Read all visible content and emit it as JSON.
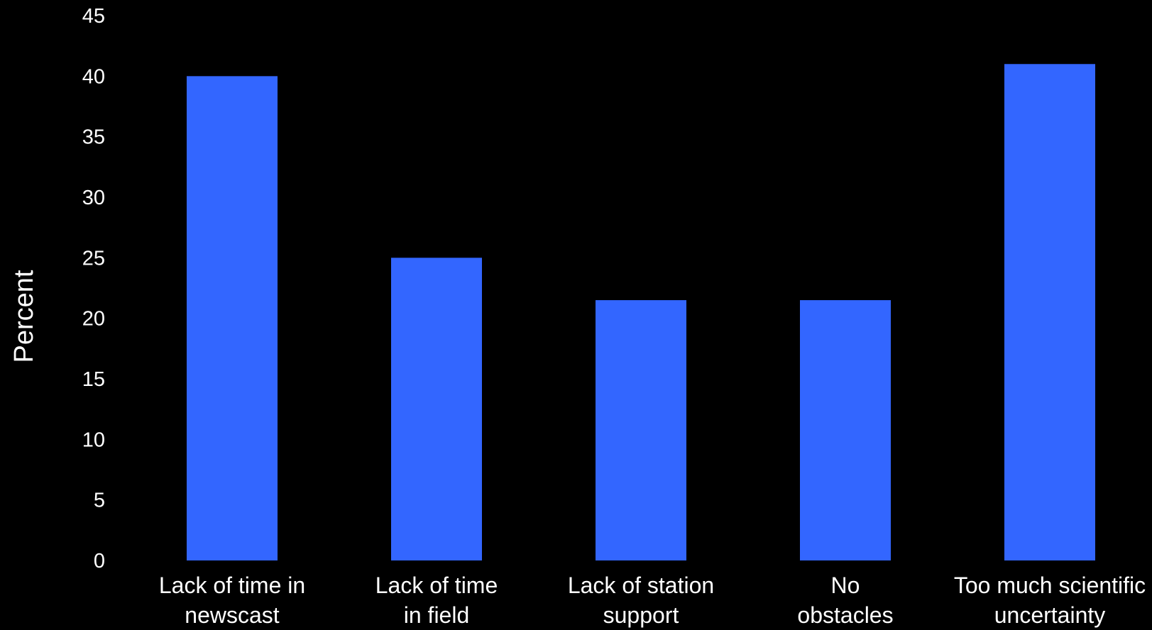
{
  "chart_data": {
    "type": "bar",
    "title": "",
    "xlabel": "",
    "ylabel": "Percent",
    "ylim": [
      0,
      45
    ],
    "yticks": [
      0,
      5,
      10,
      15,
      20,
      25,
      30,
      35,
      40,
      45
    ],
    "grid": false,
    "legend": "none",
    "categories": [
      [
        "Lack of time in",
        "newscast"
      ],
      [
        "Lack of time",
        "in field"
      ],
      [
        "Lack of station",
        "support"
      ],
      [
        "No",
        "obstacles"
      ],
      [
        "Too much scientific",
        "uncertainty"
      ]
    ],
    "values": [
      40,
      25,
      21.5,
      21.5,
      41
    ],
    "colors": {
      "background": "#000000",
      "bar": "#3366ff",
      "text": "#ffffff"
    }
  }
}
